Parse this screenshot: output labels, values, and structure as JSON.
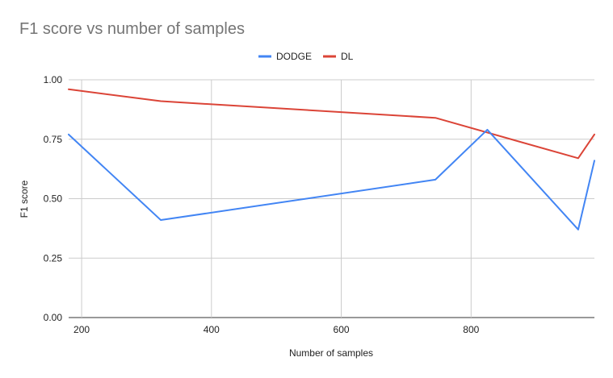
{
  "chart_data": {
    "type": "line",
    "title": "F1 score vs number of samples",
    "xlabel": "Number of samples",
    "ylabel": "F1 score",
    "xlim": [
      180,
      990
    ],
    "ylim": [
      0,
      1
    ],
    "xticks": [
      200,
      400,
      600,
      800
    ],
    "yticks": [
      0,
      0.25,
      0.5,
      0.75,
      1
    ],
    "ytick_labels": [
      "0.00",
      "0.25",
      "0.50",
      "0.75",
      "1.00"
    ],
    "grid": true,
    "legend_position": "top-center",
    "series": [
      {
        "name": "DODGE",
        "color": "#4285f4",
        "x": [
          180,
          322,
          745,
          825,
          965,
          990
        ],
        "y": [
          0.77,
          0.41,
          0.58,
          0.79,
          0.37,
          0.66
        ]
      },
      {
        "name": "DL",
        "color": "#db4437",
        "x": [
          180,
          322,
          745,
          965,
          990
        ],
        "y": [
          0.96,
          0.91,
          0.84,
          0.67,
          0.77
        ]
      }
    ]
  }
}
